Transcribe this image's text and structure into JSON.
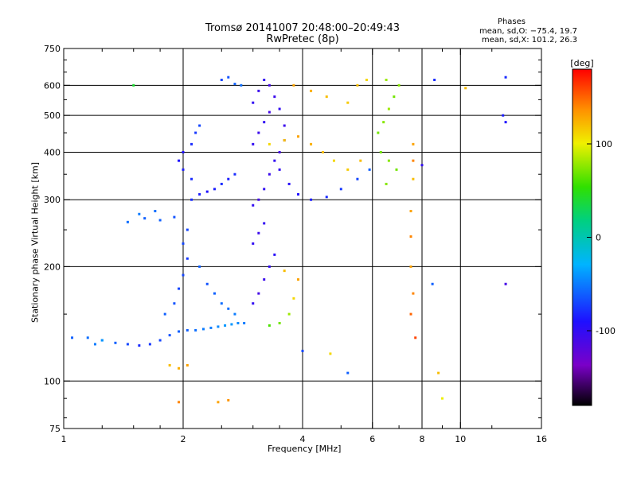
{
  "chart_data": {
    "type": "scatter",
    "title": "Tromsø 20141007 20:48:00–20:49:43",
    "subtitle": "RwPretec (8p)",
    "stats": {
      "heading": "Phases",
      "line_o": "mean, sd,O: −75.4, 19.7",
      "line_x": "mean, sd,X: 101.2, 26.3"
    },
    "xlabel": "Frequency [MHz]",
    "ylabel": "Stationary phase Virtual Height [km]",
    "x_scale": "log",
    "y_scale": "log",
    "xlim": [
      1,
      16
    ],
    "ylim": [
      75,
      750
    ],
    "x_ticks": [
      1,
      2,
      4,
      6,
      8,
      10,
      16
    ],
    "x_minor_ticks": [
      1.25,
      1.5,
      1.75,
      2.5,
      3,
      3.5,
      5,
      7,
      9,
      12
    ],
    "y_ticks": [
      75,
      100,
      200,
      300,
      400,
      500,
      600,
      750
    ],
    "y_minor_ticks": [
      80,
      90,
      150,
      250,
      350,
      450,
      550,
      650,
      700
    ],
    "x_grid": [
      2,
      4,
      6,
      8,
      10
    ],
    "y_grid": [
      100,
      200,
      300,
      400,
      500,
      600
    ],
    "colorbar": {
      "unit_label": "[deg]",
      "ticks": [
        100,
        0,
        -100
      ],
      "range": [
        -180,
        180
      ],
      "colormap": "rainbow"
    },
    "series": [
      {
        "points": [
          [
            1.05,
            130,
            -60
          ],
          [
            1.15,
            130,
            -55
          ],
          [
            1.25,
            128,
            -50
          ],
          [
            1.35,
            126,
            -60
          ],
          [
            1.45,
            125,
            -70
          ],
          [
            1.55,
            124,
            -80
          ],
          [
            1.65,
            125,
            -75
          ],
          [
            1.75,
            128,
            -70
          ],
          [
            1.85,
            132,
            -65
          ],
          [
            1.95,
            135,
            -60
          ],
          [
            2.05,
            136,
            -60
          ],
          [
            2.15,
            136,
            -55
          ],
          [
            2.25,
            137,
            -50
          ],
          [
            2.35,
            138,
            -50
          ],
          [
            2.45,
            139,
            -45
          ],
          [
            2.55,
            140,
            -40
          ],
          [
            2.65,
            141,
            -40
          ],
          [
            2.75,
            142,
            -45
          ],
          [
            2.85,
            142,
            -50
          ],
          [
            1.8,
            150,
            -60
          ],
          [
            1.9,
            160,
            -65
          ],
          [
            1.95,
            175,
            -70
          ],
          [
            2.0,
            190,
            -70
          ],
          [
            2.05,
            210,
            -75
          ],
          [
            2.0,
            230,
            -70
          ],
          [
            2.05,
            250,
            -70
          ],
          [
            1.9,
            270,
            -65
          ],
          [
            1.75,
            265,
            -60
          ],
          [
            1.6,
            268,
            -60
          ],
          [
            1.45,
            262,
            -55
          ],
          [
            1.55,
            275,
            -50
          ],
          [
            1.7,
            280,
            -55
          ],
          [
            2.1,
            300,
            -80
          ],
          [
            2.2,
            310,
            -85
          ],
          [
            2.3,
            315,
            -90
          ],
          [
            2.4,
            320,
            -85
          ],
          [
            2.5,
            330,
            -80
          ],
          [
            2.6,
            340,
            -85
          ],
          [
            2.7,
            350,
            -80
          ],
          [
            2.1,
            340,
            -80
          ],
          [
            2.0,
            360,
            -85
          ],
          [
            1.95,
            380,
            -90
          ],
          [
            2.0,
            400,
            -90
          ],
          [
            2.1,
            420,
            -80
          ],
          [
            2.15,
            450,
            -75
          ],
          [
            2.2,
            470,
            -70
          ],
          [
            2.2,
            200,
            -60
          ],
          [
            2.3,
            180,
            -65
          ],
          [
            2.4,
            170,
            -60
          ],
          [
            2.5,
            160,
            -55
          ],
          [
            2.6,
            155,
            -55
          ],
          [
            2.7,
            150,
            -50
          ],
          [
            2.5,
            620,
            -70
          ],
          [
            2.6,
            630,
            -65
          ],
          [
            2.7,
            605,
            -60
          ],
          [
            2.8,
            600,
            -55
          ],
          [
            3.0,
            290,
            -100
          ],
          [
            3.1,
            300,
            -110
          ],
          [
            3.2,
            320,
            -100
          ],
          [
            3.3,
            350,
            -105
          ],
          [
            3.4,
            380,
            -100
          ],
          [
            3.5,
            400,
            -110
          ],
          [
            3.0,
            420,
            -100
          ],
          [
            3.1,
            450,
            -105
          ],
          [
            3.2,
            480,
            -100
          ],
          [
            3.3,
            510,
            -110
          ],
          [
            3.0,
            540,
            -100
          ],
          [
            3.1,
            580,
            -105
          ],
          [
            3.2,
            620,
            -100
          ],
          [
            3.3,
            600,
            -110
          ],
          [
            3.4,
            560,
            -105
          ],
          [
            3.5,
            520,
            -100
          ],
          [
            3.6,
            470,
            -105
          ],
          [
            3.6,
            430,
            -110
          ],
          [
            3.5,
            360,
            -100
          ],
          [
            3.7,
            330,
            -95
          ],
          [
            3.9,
            310,
            -90
          ],
          [
            4.2,
            300,
            -85
          ],
          [
            4.6,
            305,
            -80
          ],
          [
            5.0,
            320,
            -75
          ],
          [
            5.5,
            340,
            -70
          ],
          [
            5.9,
            360,
            -60
          ],
          [
            3.0,
            160,
            -100
          ],
          [
            3.1,
            170,
            -110
          ],
          [
            3.2,
            185,
            -105
          ],
          [
            3.3,
            200,
            -100
          ],
          [
            3.4,
            215,
            -95
          ],
          [
            3.0,
            230,
            -100
          ],
          [
            3.1,
            245,
            -105
          ],
          [
            3.2,
            260,
            -100
          ],
          [
            3.3,
            140,
            60
          ],
          [
            3.5,
            142,
            70
          ],
          [
            3.7,
            150,
            80
          ],
          [
            3.8,
            165,
            110
          ],
          [
            3.9,
            185,
            130
          ],
          [
            3.6,
            195,
            120
          ],
          [
            3.3,
            420,
            110
          ],
          [
            3.6,
            430,
            120
          ],
          [
            3.9,
            440,
            130
          ],
          [
            4.2,
            420,
            125
          ],
          [
            4.5,
            400,
            120
          ],
          [
            4.8,
            380,
            110
          ],
          [
            5.2,
            360,
            115
          ],
          [
            5.6,
            380,
            120
          ],
          [
            3.8,
            600,
            130
          ],
          [
            4.2,
            580,
            125
          ],
          [
            4.6,
            560,
            120
          ],
          [
            5.2,
            540,
            115
          ],
          [
            5.5,
            600,
            120
          ],
          [
            5.8,
            620,
            110
          ],
          [
            6.2,
            450,
            70
          ],
          [
            6.4,
            480,
            75
          ],
          [
            6.6,
            520,
            80
          ],
          [
            6.8,
            560,
            70
          ],
          [
            7.0,
            600,
            75
          ],
          [
            6.5,
            620,
            80
          ],
          [
            6.3,
            400,
            70
          ],
          [
            6.6,
            380,
            75
          ],
          [
            6.9,
            360,
            70
          ],
          [
            6.5,
            330,
            75
          ],
          [
            7.6,
            420,
            130
          ],
          [
            7.6,
            380,
            140
          ],
          [
            7.6,
            340,
            120
          ],
          [
            7.5,
            280,
            130
          ],
          [
            7.5,
            240,
            140
          ],
          [
            7.5,
            200,
            130
          ],
          [
            7.6,
            170,
            140
          ],
          [
            7.5,
            150,
            150
          ],
          [
            7.7,
            130,
            160
          ],
          [
            1.85,
            110,
            120
          ],
          [
            1.95,
            108,
            125
          ],
          [
            2.05,
            110,
            130
          ],
          [
            1.95,
            88,
            140
          ],
          [
            2.45,
            88,
            130
          ],
          [
            2.6,
            89,
            135
          ],
          [
            4.7,
            118,
            110
          ],
          [
            8.8,
            105,
            120
          ],
          [
            9.0,
            90,
            100
          ],
          [
            13.0,
            630,
            -80
          ],
          [
            12.8,
            500,
            -85
          ],
          [
            13.0,
            480,
            -90
          ],
          [
            13.0,
            180,
            -110
          ],
          [
            8.0,
            370,
            -100
          ],
          [
            8.5,
            180,
            -60
          ],
          [
            8.6,
            620,
            -80
          ],
          [
            10.3,
            590,
            120
          ],
          [
            4.0,
            120,
            -70
          ],
          [
            5.2,
            105,
            -60
          ],
          [
            1.5,
            600,
            40
          ],
          [
            1.25,
            128,
            -40
          ],
          [
            1.2,
            125,
            -50
          ]
        ]
      }
    ]
  }
}
